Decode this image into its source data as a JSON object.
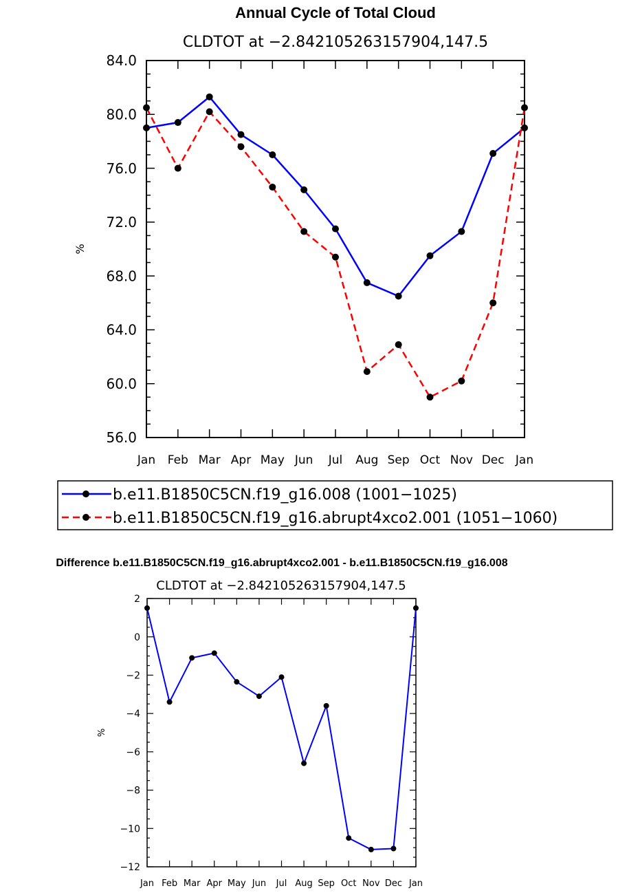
{
  "chart_data": [
    {
      "type": "line",
      "title": "Annual Cycle of Total Cloud",
      "subtitle": "CLDTOT at −2.842105263157904,147.5",
      "ylabel": "%",
      "ylim": [
        56.0,
        84.0
      ],
      "yticks": [
        "56.0",
        "60.0",
        "64.0",
        "68.0",
        "72.0",
        "76.0",
        "80.0",
        "84.0"
      ],
      "categories": [
        "Jan",
        "Feb",
        "Mar",
        "Apr",
        "May",
        "Jun",
        "Jul",
        "Aug",
        "Sep",
        "Oct",
        "Nov",
        "Dec",
        "Jan"
      ],
      "series": [
        {
          "name": "b.e11.B1850C5CN.f19_g16.008 (1001−1025)",
          "color": "#0000ff",
          "style": "solid",
          "values": [
            79.0,
            79.4,
            81.3,
            78.5,
            77.0,
            74.4,
            71.5,
            67.5,
            66.5,
            69.5,
            71.3,
            77.1,
            79.0
          ]
        },
        {
          "name": "b.e11.B1850C5CN.f19_g16.abrupt4xco2.001 (1051−1060)",
          "color": "#ff0000",
          "style": "dashed",
          "values": [
            80.5,
            76.0,
            80.2,
            77.6,
            74.6,
            71.3,
            69.4,
            60.9,
            62.9,
            59.0,
            60.2,
            66.0,
            80.5
          ]
        }
      ]
    },
    {
      "type": "line",
      "title": "Difference b.e11.B1850C5CN.f19_g16.abrupt4xco2.001 - b.e11.B1850C5CN.f19_g16.008",
      "subtitle": "CLDTOT at −2.842105263157904,147.5",
      "ylabel": "%",
      "ylim": [
        -12,
        2
      ],
      "yticks": [
        "−12",
        "−10",
        "−8",
        "−6",
        "−4",
        "−2",
        "0",
        "2"
      ],
      "categories": [
        "Jan",
        "Feb",
        "Mar",
        "Apr",
        "May",
        "Jun",
        "Jul",
        "Aug",
        "Sep",
        "Oct",
        "Nov",
        "Dec",
        "Jan"
      ],
      "series": [
        {
          "name": "Difference",
          "color": "#0000ff",
          "style": "solid",
          "values": [
            1.5,
            -3.4,
            -1.1,
            -0.85,
            -2.35,
            -3.1,
            -2.1,
            -6.6,
            -3.6,
            -10.5,
            -11.1,
            -11.05,
            1.5
          ]
        }
      ]
    }
  ]
}
